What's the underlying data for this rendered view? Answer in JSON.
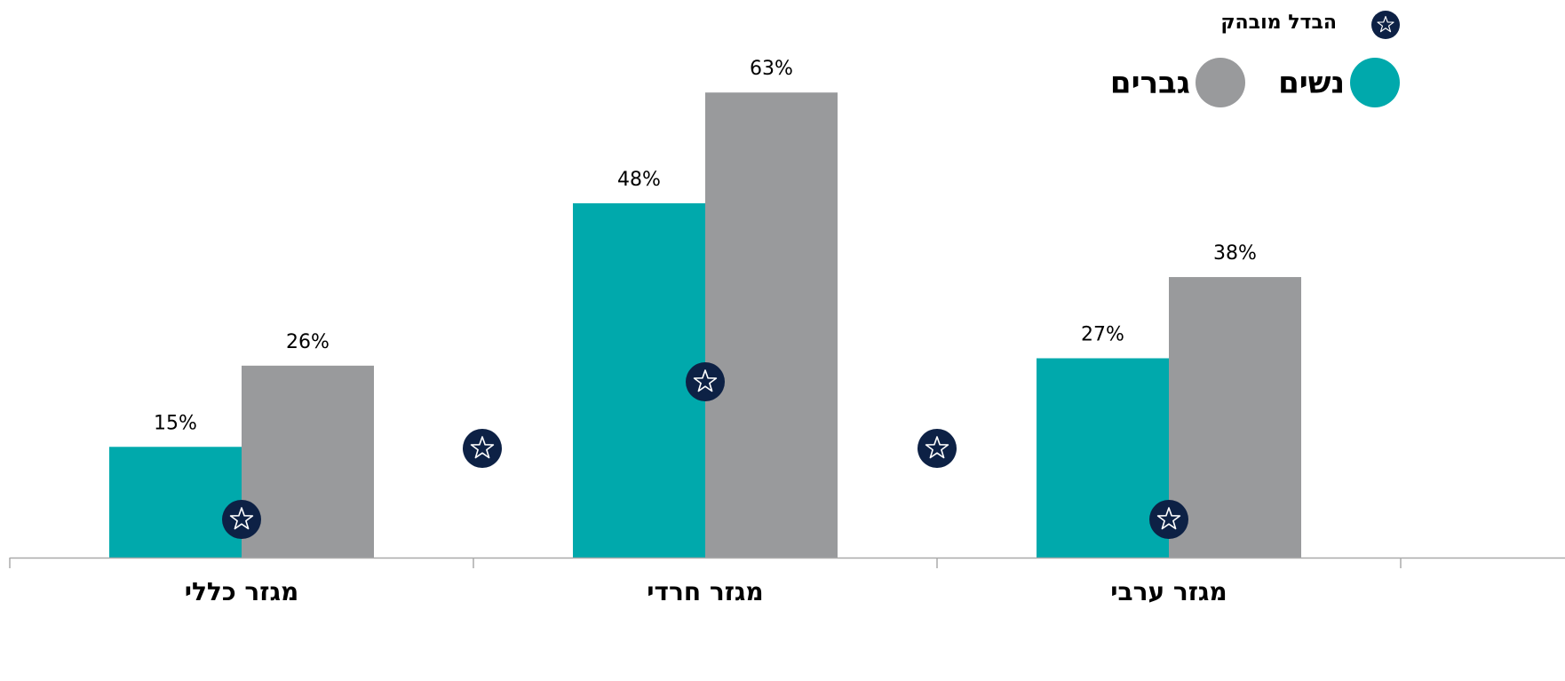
{
  "chart_data": {
    "type": "bar",
    "legend_note": "הבדל מובהק",
    "categories": [
      "מגזר כללי",
      "מגזר חרדי",
      "מגזר ערבי"
    ],
    "series": [
      {
        "name": "נשים",
        "color": "#00a9ac",
        "values": [
          15,
          48,
          27
        ],
        "value_labels": [
          "15%",
          "48%",
          "27%"
        ]
      },
      {
        "name": "גברים",
        "color": "#999a9c",
        "values": [
          26,
          63,
          38
        ],
        "value_labels": [
          "26%",
          "63%",
          "38%"
        ]
      }
    ],
    "ylim": [
      0,
      70
    ]
  }
}
